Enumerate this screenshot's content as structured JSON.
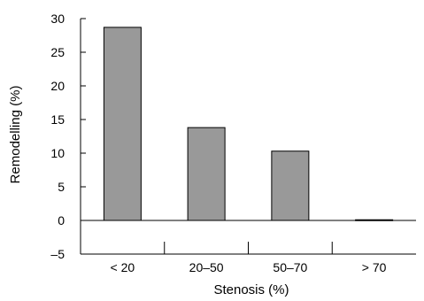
{
  "chart_data": {
    "type": "bar",
    "title": "",
    "xlabel": "Stenosis (%)",
    "ylabel": "Remodelling (%)",
    "categories": [
      "< 20",
      "20–50",
      "50–70",
      "> 70"
    ],
    "values": [
      28.7,
      13.8,
      10.3,
      0.1
    ],
    "ylim": [
      -5,
      30
    ],
    "yticks": [
      "–5",
      "0",
      "5",
      "10",
      "15",
      "20",
      "25",
      "30"
    ],
    "grid": false,
    "legend": "none",
    "bar_color": "#999999",
    "bar_edge_color": "#000000"
  }
}
